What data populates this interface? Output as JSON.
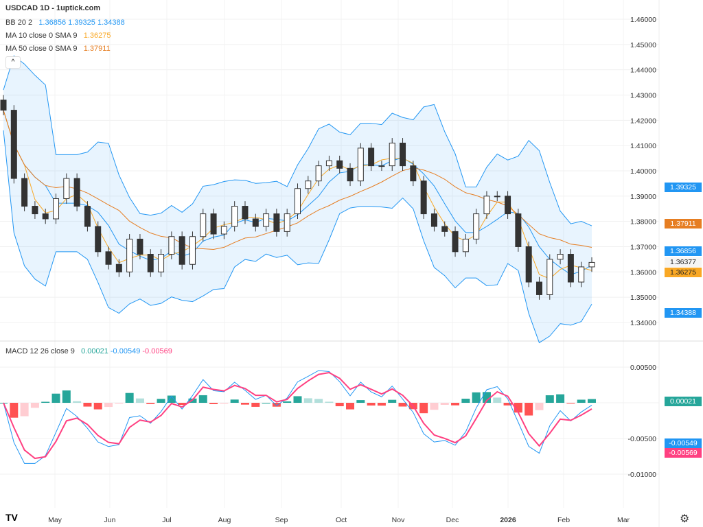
{
  "header": {
    "title": "USDCAD 1D - 1uptick.com"
  },
  "indicators": {
    "bb": {
      "label": "BB 20 2",
      "basis": "1.36856",
      "upper": "1.39325",
      "lower": "1.34388",
      "color": "#2196f3"
    },
    "ma10": {
      "label": "MA 10 close 0 SMA 9",
      "value": "1.36275",
      "color": "#f9a825"
    },
    "ma50": {
      "label": "MA 50 close 0 SMA 9",
      "value": "1.37911",
      "color": "#e67e22"
    },
    "macd": {
      "label": "MACD 12 26 close 9",
      "hist": "0.00021",
      "macd": "-0.00549",
      "signal": "-0.00569",
      "hist_color": "#26a69a",
      "macd_color": "#2196f3",
      "signal_color": "#ff4081"
    }
  },
  "price_tags": {
    "last": "1.36377"
  },
  "chart_data": {
    "type": "candlestick",
    "price_ticks": [
      "1.46000",
      "1.45000",
      "1.44000",
      "1.43000",
      "1.42000",
      "1.41000",
      "1.40000",
      "1.39000",
      "1.38000",
      "1.37000",
      "1.36000",
      "1.35000",
      "1.34000"
    ],
    "macd_ticks": [
      "0.00500",
      "-0.00500",
      "-0.01000"
    ],
    "x_ticks": [
      "May",
      "Jun",
      "Jul",
      "Aug",
      "Sep",
      "Oct",
      "Nov",
      "Dec",
      "2026",
      "Feb",
      "Mar"
    ],
    "ylim": [
      1.34,
      1.46
    ],
    "closes": [
      1.424,
      1.397,
      1.386,
      1.383,
      1.381,
      1.389,
      1.397,
      1.386,
      1.378,
      1.368,
      1.363,
      1.36,
      1.373,
      1.367,
      1.36,
      1.367,
      1.374,
      1.363,
      1.374,
      1.383,
      1.375,
      1.378,
      1.386,
      1.381,
      1.378,
      1.383,
      1.376,
      1.383,
      1.393,
      1.396,
      1.402,
      1.404,
      1.401,
      1.396,
      1.409,
      1.402,
      1.402,
      1.411,
      1.402,
      1.396,
      1.383,
      1.378,
      1.376,
      1.368,
      1.373,
      1.383,
      1.39,
      1.39,
      1.383,
      1.37,
      1.356,
      1.351,
      1.365,
      1.367,
      1.356,
      1.362,
      1.36377
    ]
  }
}
